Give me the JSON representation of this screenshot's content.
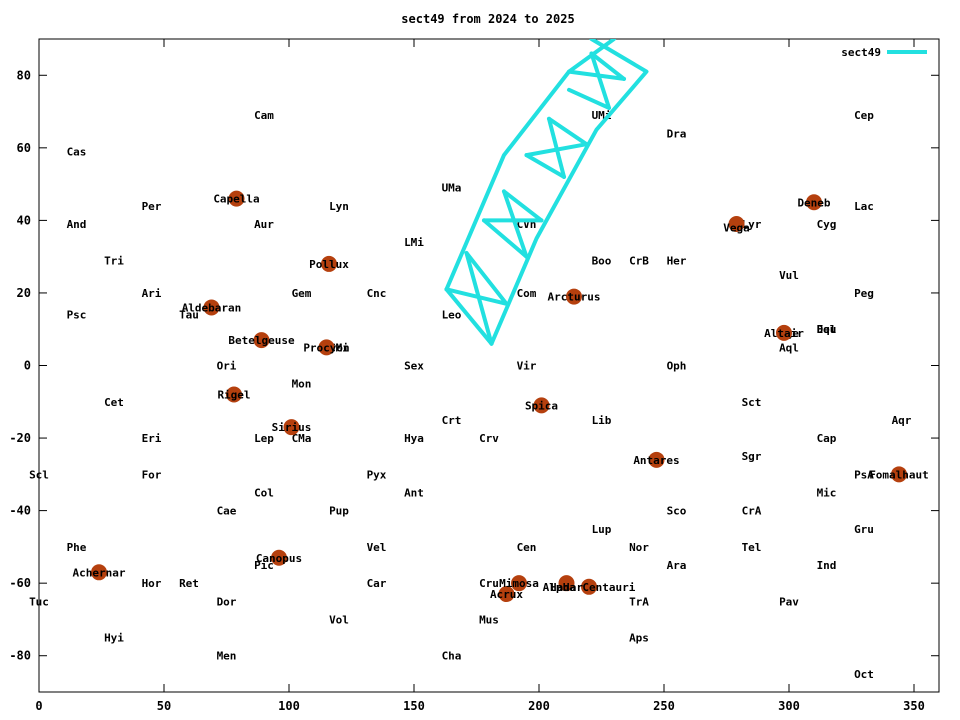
{
  "chart_data": {
    "type": "scatter",
    "title": "sect49 from 2024 to 2025",
    "xlabel": "",
    "ylabel": "",
    "xlim": [
      0,
      360
    ],
    "ylim": [
      -90,
      90
    ],
    "x_ticks": [
      0,
      50,
      100,
      150,
      200,
      250,
      300,
      350
    ],
    "y_ticks": [
      -80,
      -60,
      -40,
      -20,
      0,
      20,
      40,
      60,
      80
    ],
    "grid": false,
    "legend_position": "top-right",
    "series": [
      {
        "name": "sect49",
        "kind": "line",
        "color": "#22e0e0",
        "segments": [
          [
            [
              163,
              21
            ],
            [
              186,
              58
            ],
            [
              212,
              81
            ],
            [
              230,
              90
            ]
          ],
          [
            [
              181,
              6
            ],
            [
              199,
              35
            ],
            [
              223,
              65
            ],
            [
              243,
              81
            ],
            [
              221,
              90
            ]
          ],
          [
            [
              163,
              21
            ],
            [
              181,
              6
            ]
          ],
          [
            [
              171,
              31
            ],
            [
              187,
              17
            ]
          ],
          [
            [
              178,
              40
            ],
            [
              195,
              30
            ]
          ],
          [
            [
              186,
              48
            ],
            [
              201,
              40
            ]
          ],
          [
            [
              195,
              58
            ],
            [
              210,
              52
            ]
          ],
          [
            [
              204,
              68
            ],
            [
              219,
              61
            ]
          ],
          [
            [
              212,
              76
            ],
            [
              228,
              71
            ]
          ],
          [
            [
              221,
              86
            ],
            [
              234,
              79
            ]
          ],
          [
            [
              163,
              21
            ],
            [
              187,
              17
            ]
          ],
          [
            [
              178,
              40
            ],
            [
              201,
              40
            ]
          ],
          [
            [
              195,
              58
            ],
            [
              219,
              61
            ]
          ],
          [
            [
              212,
              81
            ],
            [
              234,
              79
            ]
          ],
          [
            [
              171,
              31
            ],
            [
              181,
              6
            ]
          ],
          [
            [
              186,
              48
            ],
            [
              195,
              30
            ]
          ],
          [
            [
              204,
              68
            ],
            [
              210,
              52
            ]
          ],
          [
            [
              221,
              86
            ],
            [
              228,
              71
            ]
          ]
        ]
      },
      {
        "name": "",
        "kind": "points",
        "color": "#b5400e",
        "points": [
          {
            "x": 79,
            "y": 46,
            "label": "Capella"
          },
          {
            "x": 69,
            "y": 16,
            "label": "Aldebaran"
          },
          {
            "x": 89,
            "y": 7,
            "label": "Betelgeuse"
          },
          {
            "x": 78,
            "y": -8,
            "label": "Rigel"
          },
          {
            "x": 101,
            "y": -17,
            "label": "Sirius"
          },
          {
            "x": 115,
            "y": 5,
            "label": "Procyon"
          },
          {
            "x": 116,
            "y": 28,
            "label": "Pollux"
          },
          {
            "x": 96,
            "y": -53,
            "label": "Canopus"
          },
          {
            "x": 24,
            "y": -57,
            "label": "Achernar"
          },
          {
            "x": 214,
            "y": 19,
            "label": "Arcturus"
          },
          {
            "x": 201,
            "y": -11,
            "label": "Spica"
          },
          {
            "x": 247,
            "y": -26,
            "label": "Antares"
          },
          {
            "x": 279,
            "y": 39,
            "label": "Vega"
          },
          {
            "x": 310,
            "y": 45,
            "label": "Deneb"
          },
          {
            "x": 298,
            "y": 9,
            "label": "Altair"
          },
          {
            "x": 344,
            "y": -30,
            "label": "Fomalhaut"
          },
          {
            "x": 192,
            "y": -60,
            "label": "Mimosa"
          },
          {
            "x": 187,
            "y": -63,
            "label": "Acrux"
          },
          {
            "x": 211,
            "y": -60,
            "label": "Hadar"
          },
          {
            "x": 220,
            "y": -61,
            "label": "Alpha Centauri"
          }
        ]
      }
    ],
    "star_labels": [
      {
        "x": 79,
        "y": 46,
        "text": "Capella"
      },
      {
        "x": 69,
        "y": 16,
        "text": "Aldebaran"
      },
      {
        "x": 89,
        "y": 7,
        "text": "Betelgeuse"
      },
      {
        "x": 78,
        "y": -8,
        "text": "Rigel"
      },
      {
        "x": 101,
        "y": -17,
        "text": "Sirius"
      },
      {
        "x": 115,
        "y": 5,
        "text": "Procyon"
      },
      {
        "x": 116,
        "y": 28,
        "text": "Pollux"
      },
      {
        "x": 96,
        "y": -53,
        "text": "Canopus"
      },
      {
        "x": 24,
        "y": -57,
        "text": "Achernar"
      },
      {
        "x": 214,
        "y": 19,
        "text": "Arcturus"
      },
      {
        "x": 201,
        "y": -11,
        "text": "Spica"
      },
      {
        "x": 247,
        "y": -26,
        "text": "Antares"
      },
      {
        "x": 279,
        "y": 38,
        "text": "Vega"
      },
      {
        "x": 310,
        "y": 45,
        "text": "Deneb"
      },
      {
        "x": 298,
        "y": 9,
        "text": "Altair"
      },
      {
        "x": 344,
        "y": -30,
        "text": "Fomalhaut"
      },
      {
        "x": 192,
        "y": -60,
        "text": "Mimosa"
      },
      {
        "x": 187,
        "y": -63,
        "text": "Acrux"
      },
      {
        "x": 211,
        "y": -61,
        "text": "Hadar"
      },
      {
        "x": 220,
        "y": -61,
        "text": "Alpha Centauri"
      }
    ],
    "constellation_labels": [
      {
        "x": 90,
        "y": 69,
        "text": "Cam"
      },
      {
        "x": 15,
        "y": 59,
        "text": "Cas"
      },
      {
        "x": 45,
        "y": 44,
        "text": "Per"
      },
      {
        "x": 90,
        "y": 39,
        "text": "Aur"
      },
      {
        "x": 120,
        "y": 44,
        "text": "Lyn"
      },
      {
        "x": 15,
        "y": 39,
        "text": "And"
      },
      {
        "x": 30,
        "y": 29,
        "text": "Tri"
      },
      {
        "x": 45,
        "y": 20,
        "text": "Ari"
      },
      {
        "x": 105,
        "y": 20,
        "text": "Gem"
      },
      {
        "x": 135,
        "y": 20,
        "text": "Cnc"
      },
      {
        "x": 15,
        "y": 14,
        "text": "Psc"
      },
      {
        "x": 60,
        "y": 14,
        "text": "Tau"
      },
      {
        "x": 75,
        "y": 0,
        "text": "Ori"
      },
      {
        "x": 120,
        "y": 5,
        "text": "CMi"
      },
      {
        "x": 105,
        "y": -5,
        "text": "Mon"
      },
      {
        "x": 30,
        "y": -10,
        "text": "Cet"
      },
      {
        "x": 45,
        "y": -20,
        "text": "Eri"
      },
      {
        "x": 90,
        "y": -20,
        "text": "Lep"
      },
      {
        "x": 105,
        "y": -20,
        "text": "CMa"
      },
      {
        "x": 0,
        "y": -30,
        "text": "Scl"
      },
      {
        "x": 45,
        "y": -30,
        "text": "For"
      },
      {
        "x": 90,
        "y": -35,
        "text": "Col"
      },
      {
        "x": 75,
        "y": -40,
        "text": "Cae"
      },
      {
        "x": 120,
        "y": -40,
        "text": "Pup"
      },
      {
        "x": 15,
        "y": -50,
        "text": "Phe"
      },
      {
        "x": 90,
        "y": -55,
        "text": "Pic"
      },
      {
        "x": 45,
        "y": -60,
        "text": "Hor"
      },
      {
        "x": 60,
        "y": -60,
        "text": "Ret"
      },
      {
        "x": 0,
        "y": -65,
        "text": "Tuc"
      },
      {
        "x": 75,
        "y": -65,
        "text": "Dor"
      },
      {
        "x": 30,
        "y": -75,
        "text": "Hyi"
      },
      {
        "x": 120,
        "y": -70,
        "text": "Vol"
      },
      {
        "x": 75,
        "y": -80,
        "text": "Men"
      },
      {
        "x": 165,
        "y": 49,
        "text": "UMa"
      },
      {
        "x": 150,
        "y": 34,
        "text": "LMi"
      },
      {
        "x": 165,
        "y": 14,
        "text": "Leo"
      },
      {
        "x": 150,
        "y": 0,
        "text": "Sex"
      },
      {
        "x": 165,
        "y": -15,
        "text": "Crt"
      },
      {
        "x": 150,
        "y": -20,
        "text": "Hya"
      },
      {
        "x": 180,
        "y": -20,
        "text": "Crv"
      },
      {
        "x": 135,
        "y": -30,
        "text": "Pyx"
      },
      {
        "x": 150,
        "y": -35,
        "text": "Ant"
      },
      {
        "x": 135,
        "y": -50,
        "text": "Vel"
      },
      {
        "x": 135,
        "y": -60,
        "text": "Car"
      },
      {
        "x": 180,
        "y": -60,
        "text": "Cru"
      },
      {
        "x": 180,
        "y": -70,
        "text": "Mus"
      },
      {
        "x": 165,
        "y": -80,
        "text": "Cha"
      },
      {
        "x": 225,
        "y": 69,
        "text": "UMi"
      },
      {
        "x": 255,
        "y": 64,
        "text": "Dra"
      },
      {
        "x": 195,
        "y": 39,
        "text": "CVn"
      },
      {
        "x": 225,
        "y": 29,
        "text": "Boo"
      },
      {
        "x": 240,
        "y": 29,
        "text": "CrB"
      },
      {
        "x": 255,
        "y": 29,
        "text": "Her"
      },
      {
        "x": 195,
        "y": 20,
        "text": "Com"
      },
      {
        "x": 195,
        "y": 0,
        "text": "Vir"
      },
      {
        "x": 225,
        "y": -15,
        "text": "Lib"
      },
      {
        "x": 195,
        "y": -50,
        "text": "Cen"
      },
      {
        "x": 225,
        "y": -45,
        "text": "Lup"
      },
      {
        "x": 240,
        "y": -50,
        "text": "Nor"
      },
      {
        "x": 240,
        "y": -65,
        "text": "TrA"
      },
      {
        "x": 240,
        "y": -75,
        "text": "Aps"
      },
      {
        "x": 255,
        "y": 0,
        "text": "Oph"
      },
      {
        "x": 255,
        "y": -40,
        "text": "Sco"
      },
      {
        "x": 255,
        "y": -55,
        "text": "Ara"
      },
      {
        "x": 285,
        "y": 39,
        "text": "Lyr"
      },
      {
        "x": 315,
        "y": 39,
        "text": "Cyg"
      },
      {
        "x": 300,
        "y": 25,
        "text": "Vul"
      },
      {
        "x": 315,
        "y": 10,
        "text": "Del"
      },
      {
        "x": 315,
        "y": 10,
        "text": "Equ"
      },
      {
        "x": 300,
        "y": 5,
        "text": "Aql"
      },
      {
        "x": 300,
        "y": 9,
        "text": "Sge"
      },
      {
        "x": 285,
        "y": -10,
        "text": "Sct"
      },
      {
        "x": 285,
        "y": -25,
        "text": "Sgr"
      },
      {
        "x": 285,
        "y": -40,
        "text": "CrA"
      },
      {
        "x": 285,
        "y": -50,
        "text": "Tel"
      },
      {
        "x": 300,
        "y": -65,
        "text": "Pav"
      },
      {
        "x": 315,
        "y": -20,
        "text": "Cap"
      },
      {
        "x": 315,
        "y": -35,
        "text": "Mic"
      },
      {
        "x": 315,
        "y": -55,
        "text": "Ind"
      },
      {
        "x": 330,
        "y": 69,
        "text": "Cep"
      },
      {
        "x": 330,
        "y": 44,
        "text": "Lac"
      },
      {
        "x": 330,
        "y": 20,
        "text": "Peg"
      },
      {
        "x": 345,
        "y": -15,
        "text": "Aqr"
      },
      {
        "x": 330,
        "y": -30,
        "text": "PsA"
      },
      {
        "x": 330,
        "y": -45,
        "text": "Gru"
      },
      {
        "x": 330,
        "y": -85,
        "text": "Oct"
      }
    ]
  }
}
